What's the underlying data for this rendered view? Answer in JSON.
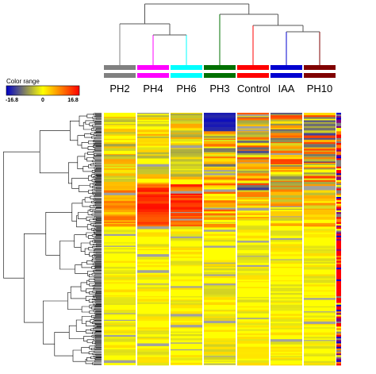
{
  "legend": {
    "title": "Color range",
    "min_label": "-16.8",
    "mid_label": "0",
    "max_label": "16.8",
    "colors": [
      "#0000c8",
      "#ffff00",
      "#ff0000"
    ]
  },
  "chart_data": {
    "type": "heatmap",
    "columns": [
      "PH2",
      "PH4",
      "PH6",
      "PH3",
      "Control",
      "IAA",
      "PH10"
    ],
    "group_colors": [
      "#808080",
      "#ff00ff",
      "#00ffff",
      "#007000",
      "#ff0000",
      "#0000d0",
      "#800000"
    ],
    "value_range": [
      -16.8,
      16.8
    ],
    "color_scale": {
      "low": "#0000c8",
      "mid": "#ffff00",
      "high": "#ff0000",
      "missing": "#a0a0a0"
    },
    "column_dendrogram": "((PH2,(PH4,PH6)),(PH3,(Control,(IAA,PH10))))",
    "row_dendrogram": true,
    "row_cluster_strip": true
  }
}
